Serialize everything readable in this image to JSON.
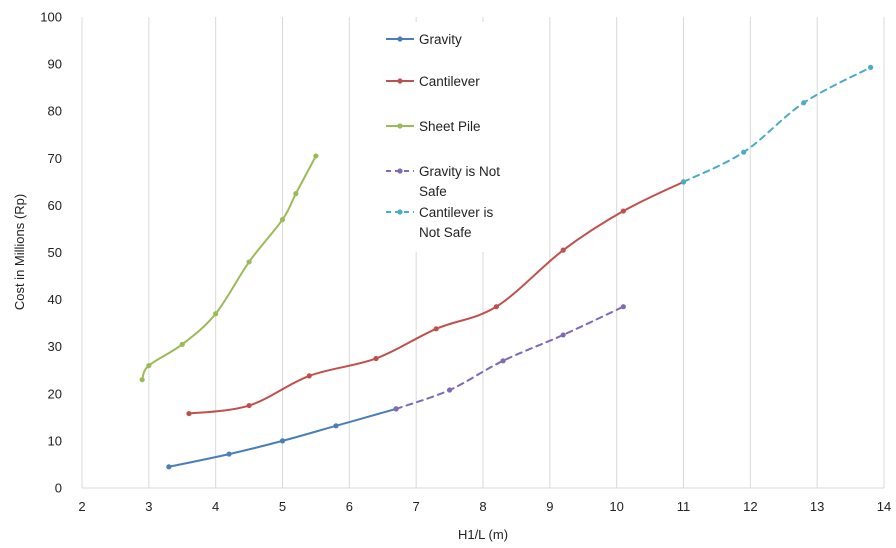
{
  "chart_data": {
    "type": "line",
    "title": "",
    "xlabel": "H1/L (m)",
    "ylabel": "Cost in Millions (Rp)",
    "xlim": [
      2,
      14
    ],
    "ylim": [
      0,
      100
    ],
    "x_ticks": [
      "2",
      "3",
      "4",
      "5",
      "6",
      "7",
      "8",
      "9",
      "10",
      "11",
      "12",
      "13",
      "14"
    ],
    "y_ticks": [
      "0",
      "10",
      "20",
      "30",
      "40",
      "50",
      "60",
      "70",
      "80",
      "90",
      "100"
    ],
    "grid": "vertical",
    "legend_position": "top-center",
    "series": [
      {
        "name": "Gravity",
        "color": "#4a7ebb",
        "dashed": false,
        "points": [
          [
            3.3,
            4.5
          ],
          [
            4.2,
            7.2
          ],
          [
            5.0,
            10.0
          ],
          [
            5.8,
            13.2
          ],
          [
            6.7,
            16.8
          ]
        ]
      },
      {
        "name": "Cantilever",
        "color": "#c0504d",
        "dashed": false,
        "points": [
          [
            3.6,
            15.8
          ],
          [
            4.5,
            17.5
          ],
          [
            5.4,
            23.8
          ],
          [
            6.4,
            27.5
          ],
          [
            7.3,
            33.8
          ],
          [
            8.2,
            38.5
          ],
          [
            9.2,
            50.5
          ],
          [
            10.1,
            58.8
          ],
          [
            11.0,
            65.0
          ]
        ]
      },
      {
        "name": "Sheet Pile",
        "color": "#9bbb59",
        "dashed": false,
        "points": [
          [
            2.9,
            23.0
          ],
          [
            3.0,
            26.0
          ],
          [
            3.5,
            30.5
          ],
          [
            4.0,
            37.0
          ],
          [
            4.5,
            48.0
          ],
          [
            5.0,
            57.0
          ],
          [
            5.2,
            62.5
          ],
          [
            5.5,
            70.5
          ]
        ]
      },
      {
        "name": "Gravity is Not Safe",
        "name_lines": [
          "Gravity is Not",
          "Safe"
        ],
        "color": "#7f6bb5",
        "dashed": true,
        "points": [
          [
            6.7,
            16.8
          ],
          [
            7.5,
            20.8
          ],
          [
            8.3,
            27.0
          ],
          [
            9.2,
            32.5
          ],
          [
            10.1,
            38.5
          ]
        ]
      },
      {
        "name": "Cantilever is Not Safe",
        "name_lines": [
          "Cantilever is",
          "Not Safe"
        ],
        "color": "#4bacc6",
        "dashed": true,
        "points": [
          [
            11.0,
            65.0
          ],
          [
            11.9,
            71.3
          ],
          [
            12.8,
            81.8
          ],
          [
            13.8,
            89.3
          ]
        ]
      }
    ]
  }
}
